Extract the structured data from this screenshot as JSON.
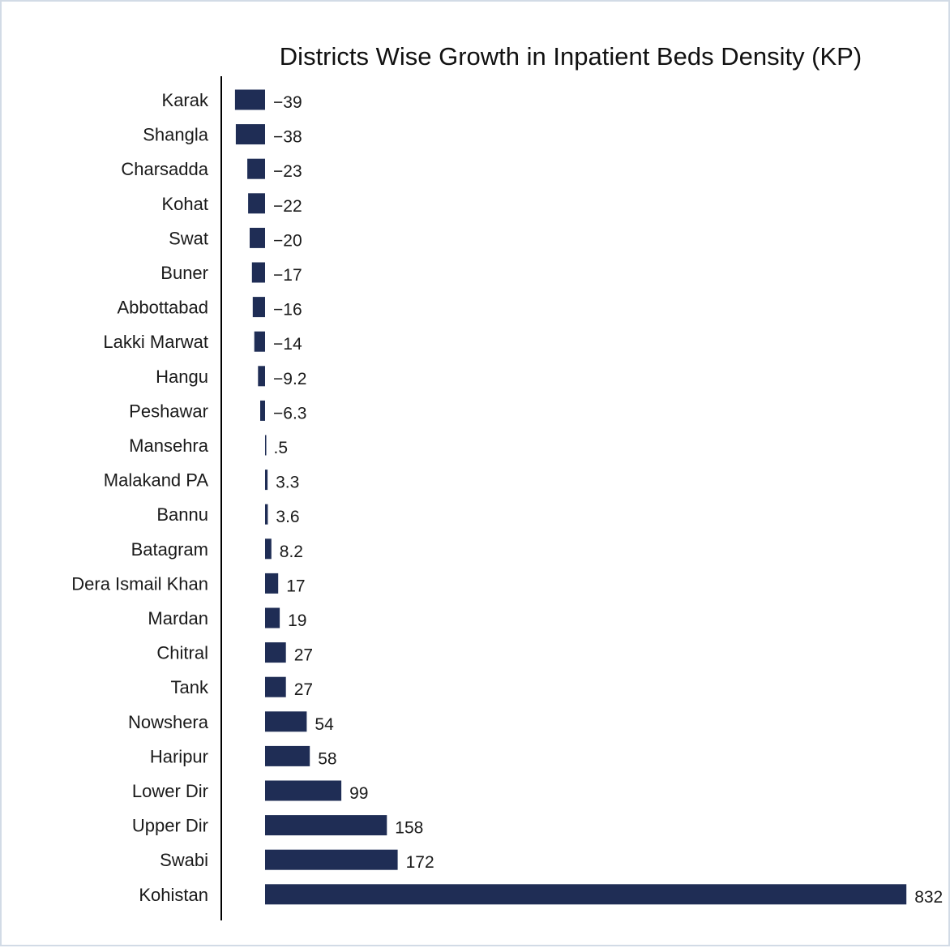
{
  "chart_data": {
    "type": "bar",
    "orientation": "horizontal",
    "title": "Districts Wise Growth in Inpatient Beds Density (KP)",
    "categories": [
      "Karak",
      "Shangla",
      "Charsadda",
      "Kohat",
      "Swat",
      "Buner",
      "Abbottabad",
      "Lakki Marwat",
      "Hangu",
      "Peshawar",
      "Mansehra",
      "Malakand PA",
      "Bannu",
      "Batagram",
      "Dera Ismail Khan",
      "Mardan",
      "Chitral",
      "Tank",
      "Nowshera",
      "Haripur",
      "Lower Dir",
      "Upper Dir",
      "Swabi",
      "Kohistan"
    ],
    "values": [
      -39,
      -38,
      -23,
      -22,
      -20,
      -17,
      -16,
      -14,
      -9.2,
      -6.3,
      0.5,
      3.3,
      3.6,
      8.2,
      17,
      19,
      27,
      27,
      54,
      58,
      99,
      158,
      172,
      832
    ],
    "value_labels": [
      "−39",
      "−38",
      "−23",
      "−22",
      "−20",
      "−17",
      "−16",
      "−14",
      "−9.2",
      "−6.3",
      ".5",
      "3.3",
      "3.6",
      "8.2",
      "17",
      "19",
      "27",
      "27",
      "54",
      "58",
      "99",
      "158",
      "172",
      "832"
    ],
    "xlabel": "",
    "ylabel": "",
    "xlim": [
      -39,
      832
    ],
    "grid": false,
    "legend": "none",
    "bar_color": "#1f2d55"
  }
}
